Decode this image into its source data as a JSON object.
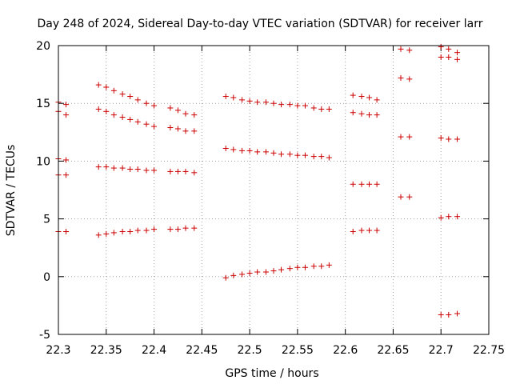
{
  "chart_data": {
    "type": "scatter",
    "title": "Day 248 of 2024, Sidereal Day-to-day VTEC variation (SDTVAR) for receiver larr",
    "xlabel": "GPS time / hours",
    "ylabel": "SDTVAR / TECUs",
    "xlim": [
      22.3,
      22.75
    ],
    "ylim": [
      -5,
      20
    ],
    "xticks": [
      22.3,
      22.35,
      22.4,
      22.45,
      22.5,
      22.55,
      22.6,
      22.65,
      22.7,
      22.75
    ],
    "xtick_labels": [
      "22.3",
      "22.35",
      "22.4",
      "22.45",
      "22.5",
      "22.55",
      "22.6",
      "22.65",
      "22.7",
      "22.75"
    ],
    "yticks": [
      -5,
      0,
      5,
      10,
      15,
      20
    ],
    "ytick_labels": [
      "-5",
      "0",
      "5",
      "10",
      "15",
      "20"
    ],
    "grid": true,
    "marker": "+",
    "color": "#cc0000",
    "series": [
      {
        "name": "SDTVAR",
        "x": [
          22.3,
          22.3,
          22.3,
          22.3,
          22.3,
          22.308,
          22.308,
          22.308,
          22.308,
          22.308,
          22.342,
          22.342,
          22.342,
          22.342,
          22.35,
          22.35,
          22.35,
          22.35,
          22.358,
          22.358,
          22.358,
          22.358,
          22.367,
          22.367,
          22.367,
          22.367,
          22.375,
          22.375,
          22.375,
          22.375,
          22.383,
          22.383,
          22.383,
          22.383,
          22.392,
          22.392,
          22.392,
          22.392,
          22.4,
          22.4,
          22.4,
          22.4,
          22.417,
          22.417,
          22.417,
          22.417,
          22.425,
          22.425,
          22.425,
          22.425,
          22.433,
          22.433,
          22.433,
          22.433,
          22.442,
          22.442,
          22.442,
          22.442,
          22.475,
          22.475,
          22.475,
          22.483,
          22.483,
          22.483,
          22.492,
          22.492,
          22.492,
          22.5,
          22.5,
          22.5,
          22.508,
          22.508,
          22.508,
          22.517,
          22.517,
          22.517,
          22.525,
          22.525,
          22.525,
          22.533,
          22.533,
          22.533,
          22.542,
          22.542,
          22.542,
          22.55,
          22.55,
          22.55,
          22.558,
          22.558,
          22.558,
          22.567,
          22.567,
          22.567,
          22.575,
          22.575,
          22.575,
          22.583,
          22.583,
          22.583,
          22.608,
          22.608,
          22.608,
          22.608,
          22.617,
          22.617,
          22.617,
          22.617,
          22.625,
          22.625,
          22.625,
          22.625,
          22.633,
          22.633,
          22.633,
          22.633,
          22.658,
          22.658,
          22.658,
          22.658,
          22.667,
          22.667,
          22.667,
          22.667,
          22.7,
          22.7,
          22.7,
          22.7,
          22.7,
          22.708,
          22.708,
          22.708,
          22.708,
          22.708,
          22.717,
          22.717,
          22.717,
          22.717,
          22.717
        ],
        "y": [
          15.1,
          14.3,
          10.2,
          8.8,
          3.9,
          14.9,
          14.0,
          10.1,
          8.8,
          3.9,
          16.6,
          14.5,
          9.5,
          3.6,
          16.4,
          14.3,
          9.5,
          3.7,
          16.1,
          14.0,
          9.4,
          3.8,
          15.8,
          13.8,
          9.4,
          3.9,
          15.6,
          13.6,
          9.3,
          3.9,
          15.3,
          13.4,
          9.3,
          4.0,
          15.0,
          13.2,
          9.2,
          4.0,
          14.8,
          13.0,
          9.2,
          4.1,
          14.6,
          12.9,
          9.1,
          4.1,
          14.4,
          12.8,
          9.1,
          4.1,
          14.1,
          12.6,
          9.1,
          4.2,
          14.0,
          12.6,
          9.0,
          4.2,
          15.6,
          11.1,
          -0.1,
          15.5,
          11.0,
          0.1,
          15.3,
          10.9,
          0.2,
          15.2,
          10.9,
          0.3,
          15.1,
          10.8,
          0.4,
          15.1,
          10.8,
          0.4,
          15.0,
          10.7,
          0.5,
          14.9,
          10.6,
          0.6,
          14.9,
          10.6,
          0.7,
          14.8,
          10.5,
          0.8,
          14.8,
          10.5,
          0.8,
          14.6,
          10.4,
          0.9,
          14.5,
          10.4,
          0.9,
          14.5,
          10.3,
          1.0,
          15.7,
          14.2,
          8.0,
          3.9,
          15.6,
          14.1,
          8.0,
          4.0,
          15.5,
          14.0,
          8.0,
          4.0,
          15.3,
          14.0,
          8.0,
          4.0,
          19.7,
          17.2,
          12.1,
          6.9,
          19.6,
          17.1,
          12.1,
          6.9,
          19.9,
          19.0,
          12.0,
          5.1,
          -3.3,
          19.7,
          19.0,
          11.9,
          5.2,
          -3.3,
          19.4,
          18.8,
          11.9,
          5.2,
          -3.2
        ]
      }
    ]
  }
}
